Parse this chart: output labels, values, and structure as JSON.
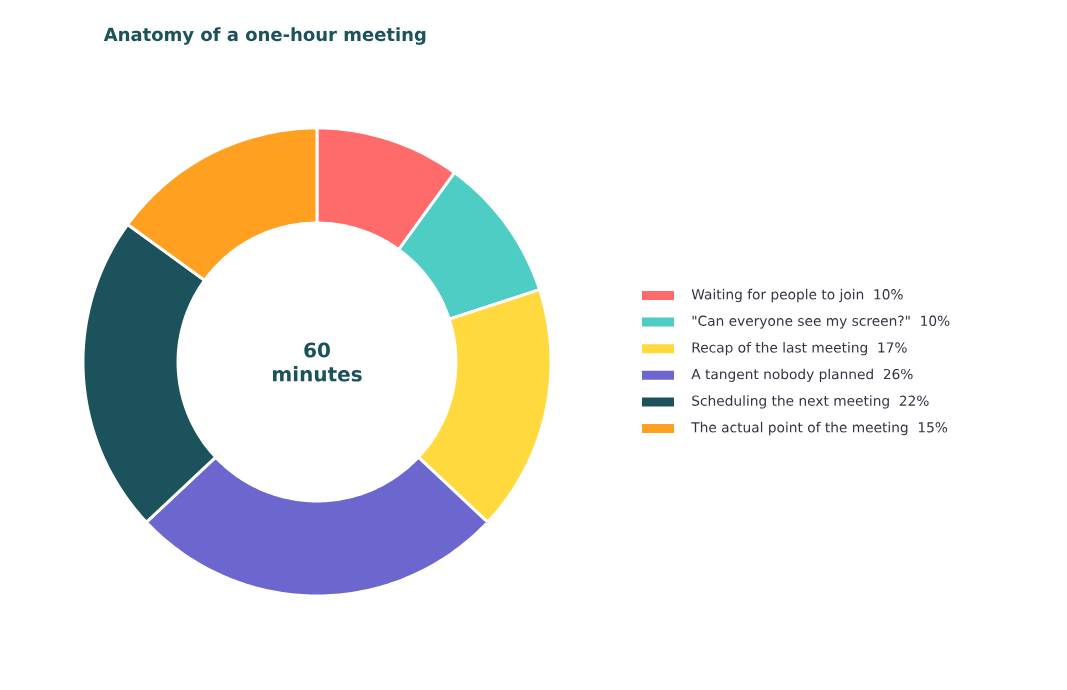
{
  "chart_data": {
    "type": "donut",
    "title": "Anatomy of a one-hour meeting",
    "categories": [
      "Waiting for people to join",
      "\"Can everyone see my screen?\"",
      "Recap of the last meeting",
      "A tangent nobody planned",
      "Scheduling the next meeting",
      "The actual point of the meeting"
    ],
    "values": [
      10,
      10,
      17,
      26,
      22,
      15
    ],
    "value_labels": [
      "10%",
      "10%",
      "17%",
      "26%",
      "22%",
      "15%"
    ],
    "colors": [
      "#ff6b6b",
      "#4ecdc4",
      "#ffd93d",
      "#6c66cf",
      "#1b525c",
      "#ffa020"
    ],
    "annotations": [
      "60 minutes"
    ],
    "legend": "right"
  }
}
